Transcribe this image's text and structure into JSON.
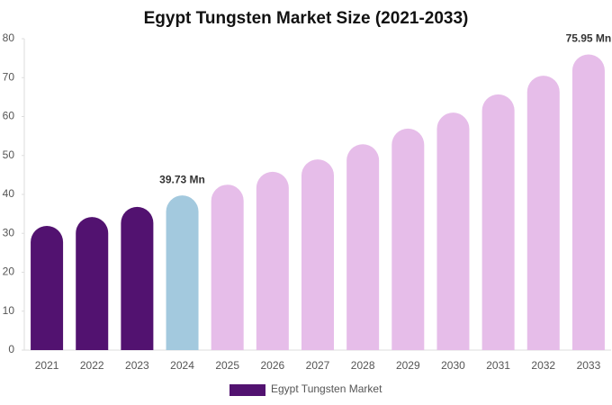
{
  "chart_data": {
    "type": "bar",
    "title": "Egypt Tungsten Market Size (2021-2033)",
    "categories": [
      "2021",
      "2022",
      "2023",
      "2024",
      "2025",
      "2026",
      "2027",
      "2028",
      "2029",
      "2030",
      "2031",
      "2032",
      "2033"
    ],
    "series": [
      {
        "name": "Egypt Tungsten Market",
        "color": "#521270",
        "values": [
          31.9,
          34.2,
          36.8,
          39.73,
          42.5,
          45.8,
          49.0,
          52.9,
          56.9,
          61.0,
          65.7,
          70.5,
          75.95
        ],
        "colors": [
          "#521270",
          "#521270",
          "#521270",
          "#a3c9de",
          "#e6bde9",
          "#e6bde9",
          "#e6bde9",
          "#e6bde9",
          "#e6bde9",
          "#e6bde9",
          "#e6bde9",
          "#e6bde9",
          "#e6bde9"
        ],
        "value_labels": [
          null,
          null,
          null,
          "39.73 Mn",
          null,
          null,
          null,
          null,
          null,
          null,
          null,
          null,
          "75.95 Mn"
        ]
      }
    ],
    "ylim": [
      0,
      80
    ],
    "yticks": [
      0,
      10,
      20,
      30,
      40,
      50,
      60,
      70,
      80
    ],
    "grid": false
  }
}
